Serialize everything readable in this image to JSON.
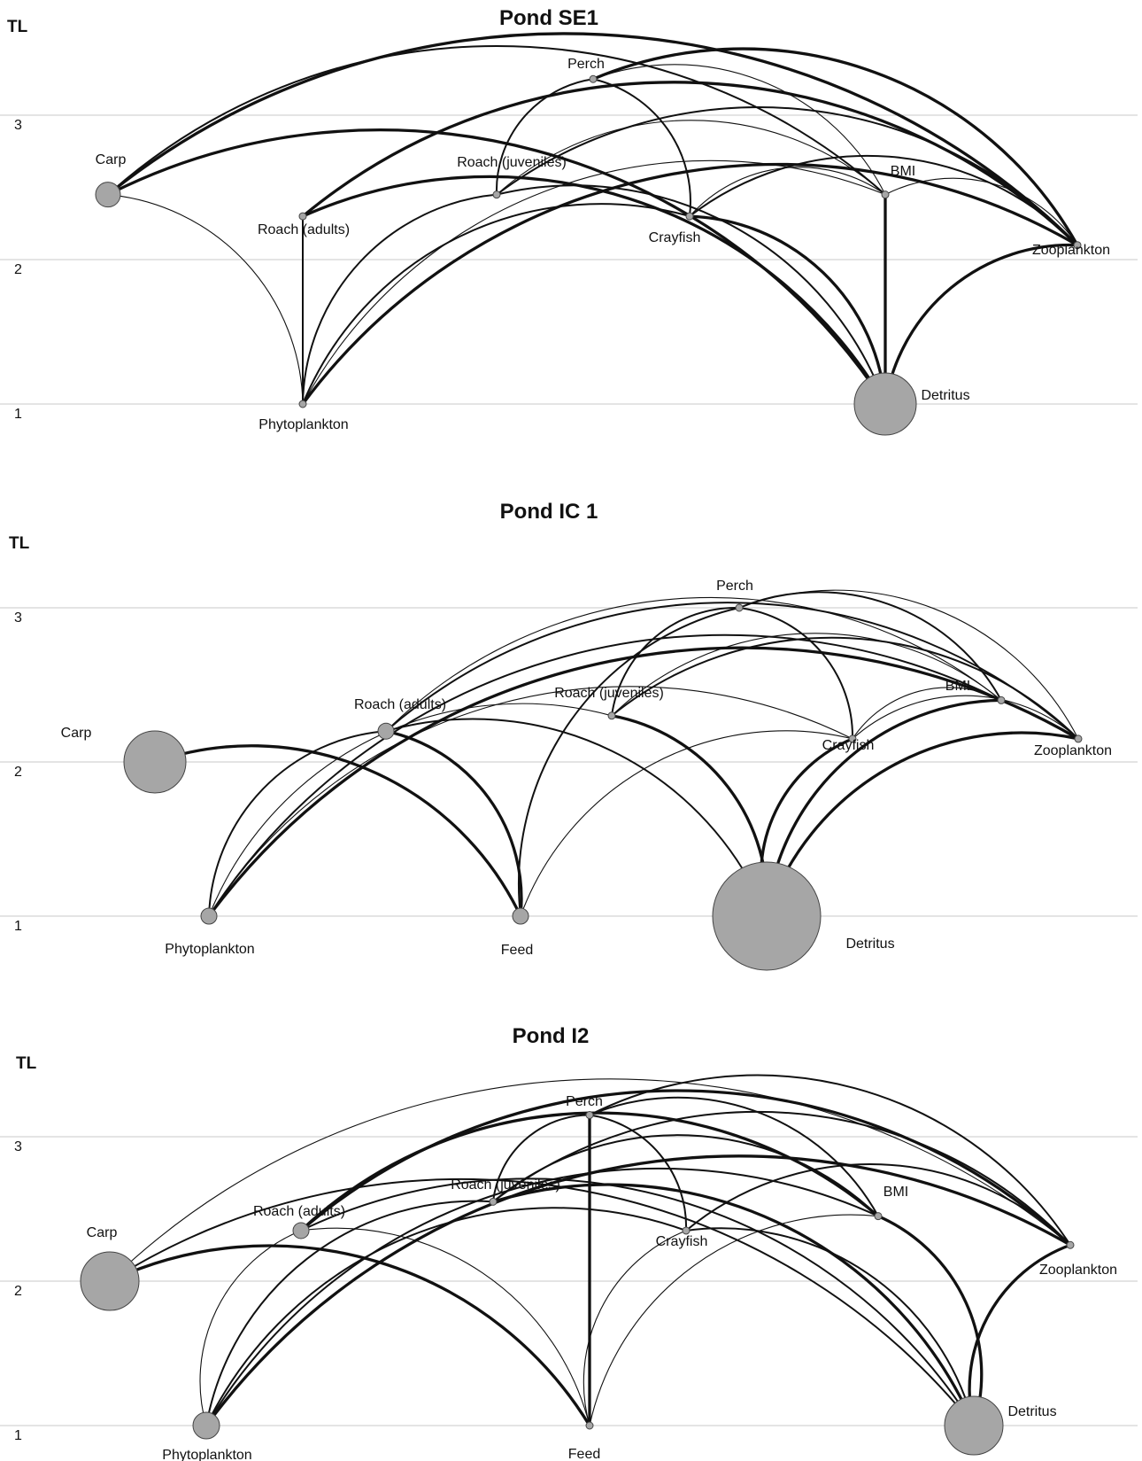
{
  "panels": [
    {
      "title": "Pond SE1",
      "axis_label": "TL",
      "ticks": [
        "1",
        "2",
        "3"
      ],
      "nodes": [
        {
          "id": "carp",
          "label": "Carp",
          "tl": 2.45,
          "size": "medium"
        },
        {
          "id": "roach_adults",
          "label": "Roach (adults)",
          "tl": 2.3,
          "size": "tiny"
        },
        {
          "id": "roach_juveniles",
          "label": "Roach (juveniles)",
          "tl": 2.45,
          "size": "tiny"
        },
        {
          "id": "perch",
          "label": "Perch",
          "tl": 3.25,
          "size": "tiny"
        },
        {
          "id": "crayfish",
          "label": "Crayfish",
          "tl": 2.3,
          "size": "tiny"
        },
        {
          "id": "bmi",
          "label": "BMI",
          "tl": 2.45,
          "size": "tiny"
        },
        {
          "id": "zooplankton",
          "label": "Zooplankton",
          "tl": 2.1,
          "size": "tiny"
        },
        {
          "id": "phytoplankton",
          "label": "Phytoplankton",
          "tl": 1.0,
          "size": "tiny"
        },
        {
          "id": "detritus",
          "label": "Detritus",
          "tl": 1.0,
          "size": "large"
        }
      ],
      "links": [
        {
          "from": "phytoplankton",
          "to": "carp",
          "weight": "thin"
        },
        {
          "from": "phytoplankton",
          "to": "roach_adults",
          "weight": "medium"
        },
        {
          "from": "phytoplankton",
          "to": "roach_juveniles",
          "weight": "medium"
        },
        {
          "from": "phytoplankton",
          "to": "crayfish",
          "weight": "medium"
        },
        {
          "from": "phytoplankton",
          "to": "bmi",
          "weight": "thin"
        },
        {
          "from": "phytoplankton",
          "to": "zooplankton",
          "weight": "thick"
        },
        {
          "from": "detritus",
          "to": "carp",
          "weight": "thick"
        },
        {
          "from": "detritus",
          "to": "roach_adults",
          "weight": "thick"
        },
        {
          "from": "detritus",
          "to": "roach_juveniles",
          "weight": "medium"
        },
        {
          "from": "detritus",
          "to": "crayfish",
          "weight": "thick"
        },
        {
          "from": "detritus",
          "to": "bmi",
          "weight": "thick"
        },
        {
          "from": "detritus",
          "to": "zooplankton",
          "weight": "thick"
        },
        {
          "from": "zooplankton",
          "to": "carp",
          "weight": "thick"
        },
        {
          "from": "zooplankton",
          "to": "roach_adults",
          "weight": "thick"
        },
        {
          "from": "zooplankton",
          "to": "roach_juveniles",
          "weight": "medium"
        },
        {
          "from": "zooplankton",
          "to": "crayfish",
          "weight": "medium"
        },
        {
          "from": "zooplankton",
          "to": "bmi",
          "weight": "thin"
        },
        {
          "from": "zooplankton",
          "to": "perch",
          "weight": "thick"
        },
        {
          "from": "bmi",
          "to": "carp",
          "weight": "medium"
        },
        {
          "from": "bmi",
          "to": "roach_juveniles",
          "weight": "thin"
        },
        {
          "from": "bmi",
          "to": "crayfish",
          "weight": "thin"
        },
        {
          "from": "bmi",
          "to": "perch",
          "weight": "thin"
        },
        {
          "from": "crayfish",
          "to": "perch",
          "weight": "medium"
        },
        {
          "from": "roach_juveniles",
          "to": "perch",
          "weight": "medium"
        }
      ]
    },
    {
      "title": "Pond IC 1",
      "axis_label": "TL",
      "ticks": [
        "1",
        "2",
        "3"
      ],
      "nodes": [
        {
          "id": "carp",
          "label": "Carp",
          "tl": 2.0,
          "size": "large"
        },
        {
          "id": "roach_adults",
          "label": "Roach (adults)",
          "tl": 2.2,
          "size": "small"
        },
        {
          "id": "roach_juveniles",
          "label": "Roach (juveniles)",
          "tl": 2.3,
          "size": "tiny"
        },
        {
          "id": "perch",
          "label": "Perch",
          "tl": 3.0,
          "size": "tiny"
        },
        {
          "id": "crayfish",
          "label": "Crayfish",
          "tl": 2.15,
          "size": "tiny"
        },
        {
          "id": "bmi",
          "label": "BMI",
          "tl": 2.4,
          "size": "tiny"
        },
        {
          "id": "zooplankton",
          "label": "Zooplankton",
          "tl": 2.15,
          "size": "tiny"
        },
        {
          "id": "phytoplankton",
          "label": "Phytoplankton",
          "tl": 1.0,
          "size": "small"
        },
        {
          "id": "feed",
          "label": "Feed",
          "tl": 1.0,
          "size": "small"
        },
        {
          "id": "detritus",
          "label": "Detritus",
          "tl": 1.0,
          "size": "xlarge"
        }
      ],
      "links": [
        {
          "from": "feed",
          "to": "carp",
          "weight": "thick"
        },
        {
          "from": "feed",
          "to": "roach_adults",
          "weight": "thick"
        },
        {
          "from": "feed",
          "to": "crayfish",
          "weight": "thin"
        },
        {
          "from": "feed",
          "to": "perch",
          "weight": "medium"
        },
        {
          "from": "phytoplankton",
          "to": "roach_adults",
          "weight": "medium"
        },
        {
          "from": "phytoplankton",
          "to": "roach_juveniles",
          "weight": "thin"
        },
        {
          "from": "phytoplankton",
          "to": "crayfish",
          "weight": "thin"
        },
        {
          "from": "phytoplankton",
          "to": "bmi",
          "weight": "medium"
        },
        {
          "from": "phytoplankton",
          "to": "zooplankton",
          "weight": "thick"
        },
        {
          "from": "detritus",
          "to": "roach_adults",
          "weight": "medium"
        },
        {
          "from": "detritus",
          "to": "roach_juveniles",
          "weight": "thick"
        },
        {
          "from": "detritus",
          "to": "crayfish",
          "weight": "thick"
        },
        {
          "from": "detritus",
          "to": "bmi",
          "weight": "thick"
        },
        {
          "from": "detritus",
          "to": "zooplankton",
          "weight": "thick"
        },
        {
          "from": "zooplankton",
          "to": "roach_adults",
          "weight": "medium"
        },
        {
          "from": "zooplankton",
          "to": "roach_juveniles",
          "weight": "medium"
        },
        {
          "from": "zooplankton",
          "to": "crayfish",
          "weight": "thin"
        },
        {
          "from": "zooplankton",
          "to": "perch",
          "weight": "thin"
        },
        {
          "from": "bmi",
          "to": "roach_adults",
          "weight": "thin"
        },
        {
          "from": "bmi",
          "to": "roach_juveniles",
          "weight": "thin"
        },
        {
          "from": "bmi",
          "to": "crayfish",
          "weight": "thin"
        },
        {
          "from": "bmi",
          "to": "perch",
          "weight": "medium"
        },
        {
          "from": "crayfish",
          "to": "perch",
          "weight": "medium"
        },
        {
          "from": "roach_juveniles",
          "to": "perch",
          "weight": "medium"
        }
      ]
    },
    {
      "title": "Pond I2",
      "axis_label": "TL",
      "ticks": [
        "1",
        "2",
        "3"
      ],
      "nodes": [
        {
          "id": "carp",
          "label": "Carp",
          "tl": 2.0,
          "size": "medium_large"
        },
        {
          "id": "roach_adults",
          "label": "Roach (adults)",
          "tl": 2.35,
          "size": "small"
        },
        {
          "id": "roach_juveniles",
          "label": "Roach (juveniles)",
          "tl": 2.55,
          "size": "tiny"
        },
        {
          "id": "perch",
          "label": "Perch",
          "tl": 3.15,
          "size": "tiny"
        },
        {
          "id": "crayfish",
          "label": "Crayfish",
          "tl": 2.35,
          "size": "tiny"
        },
        {
          "id": "bmi",
          "label": "BMI",
          "tl": 2.45,
          "size": "tiny"
        },
        {
          "id": "zooplankton",
          "label": "Zooplankton",
          "tl": 2.25,
          "size": "tiny"
        },
        {
          "id": "phytoplankton",
          "label": "Phytoplankton",
          "tl": 1.0,
          "size": "small_plus"
        },
        {
          "id": "feed",
          "label": "Feed",
          "tl": 1.0,
          "size": "tiny"
        },
        {
          "id": "detritus",
          "label": "Detritus",
          "tl": 1.0,
          "size": "medium_large"
        }
      ],
      "links": [
        {
          "from": "feed",
          "to": "carp",
          "weight": "thick"
        },
        {
          "from": "feed",
          "to": "roach_adults",
          "weight": "thin"
        },
        {
          "from": "feed",
          "to": "perch",
          "weight": "thick"
        },
        {
          "from": "feed",
          "to": "crayfish",
          "weight": "thin"
        },
        {
          "from": "feed",
          "to": "bmi",
          "weight": "thin"
        },
        {
          "from": "phytoplankton",
          "to": "roach_adults",
          "weight": "thin"
        },
        {
          "from": "phytoplankton",
          "to": "roach_juveniles",
          "weight": "medium"
        },
        {
          "from": "phytoplankton",
          "to": "crayfish",
          "weight": "medium"
        },
        {
          "from": "phytoplankton",
          "to": "bmi",
          "weight": "medium"
        },
        {
          "from": "phytoplankton",
          "to": "zooplankton",
          "weight": "thick"
        },
        {
          "from": "detritus",
          "to": "carp",
          "weight": "medium"
        },
        {
          "from": "detritus",
          "to": "roach_adults",
          "weight": "medium"
        },
        {
          "from": "detritus",
          "to": "roach_juveniles",
          "weight": "thick"
        },
        {
          "from": "detritus",
          "to": "crayfish",
          "weight": "medium"
        },
        {
          "from": "detritus",
          "to": "bmi",
          "weight": "thick"
        },
        {
          "from": "detritus",
          "to": "zooplankton",
          "weight": "thick"
        },
        {
          "from": "zooplankton",
          "to": "carp",
          "weight": "thin"
        },
        {
          "from": "zooplankton",
          "to": "roach_adults",
          "weight": "thick"
        },
        {
          "from": "zooplankton",
          "to": "roach_juveniles",
          "weight": "medium"
        },
        {
          "from": "zooplankton",
          "to": "crayfish",
          "weight": "medium"
        },
        {
          "from": "zooplankton",
          "to": "perch",
          "weight": "medium"
        },
        {
          "from": "bmi",
          "to": "roach_adults",
          "weight": "thick"
        },
        {
          "from": "bmi",
          "to": "roach_juveniles",
          "weight": "medium"
        },
        {
          "from": "bmi",
          "to": "perch",
          "weight": "medium"
        },
        {
          "from": "crayfish",
          "to": "perch",
          "weight": "medium"
        },
        {
          "from": "roach_juveniles",
          "to": "perch",
          "weight": "medium"
        }
      ]
    }
  ]
}
